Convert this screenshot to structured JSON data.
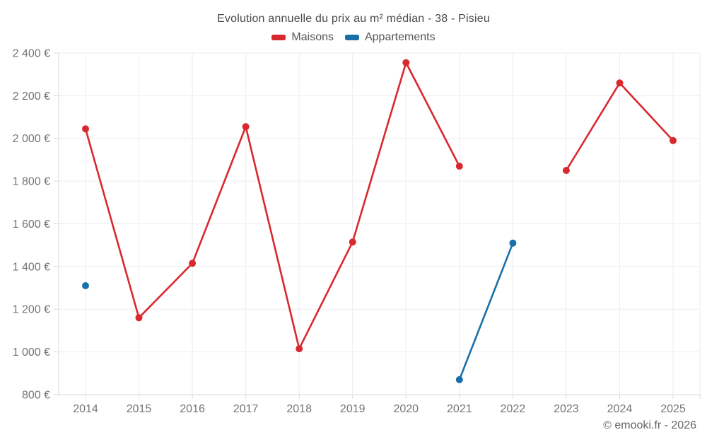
{
  "title": "Evolution annuelle du prix au m² médian - 38 - Pisieu",
  "legend": {
    "items": [
      {
        "label": "Maisons",
        "color": "#d9282e"
      },
      {
        "label": "Appartements",
        "color": "#1b6fa8"
      }
    ]
  },
  "footer": {
    "credit": "© emooki.fr - 2026"
  },
  "colors": {
    "grid": "#ededed",
    "axis": "#d9d9d9",
    "tick_label": "#757575"
  },
  "chart_data": {
    "type": "line",
    "title": "Evolution annuelle du prix au m² médian - 38 - Pisieu",
    "categories": [
      "2014",
      "2015",
      "2016",
      "2017",
      "2018",
      "2019",
      "2020",
      "2021",
      "2022",
      "2023",
      "2024",
      "2025"
    ],
    "series": [
      {
        "name": "Maisons",
        "color": "#d9282e",
        "values": [
          2045,
          1160,
          1415,
          2055,
          1015,
          1515,
          2355,
          1870,
          null,
          1850,
          2260,
          1990
        ]
      },
      {
        "name": "Appartements",
        "color": "#1b6fa8",
        "values": [
          1310,
          null,
          null,
          null,
          null,
          null,
          null,
          870,
          1510,
          null,
          null,
          null
        ]
      }
    ],
    "yticks": [
      800,
      1000,
      1200,
      1400,
      1600,
      1800,
      2000,
      2200,
      2400
    ],
    "ylim": [
      800,
      2400
    ],
    "ytick_suffix": "€",
    "grid": true,
    "legend_position": "top"
  }
}
